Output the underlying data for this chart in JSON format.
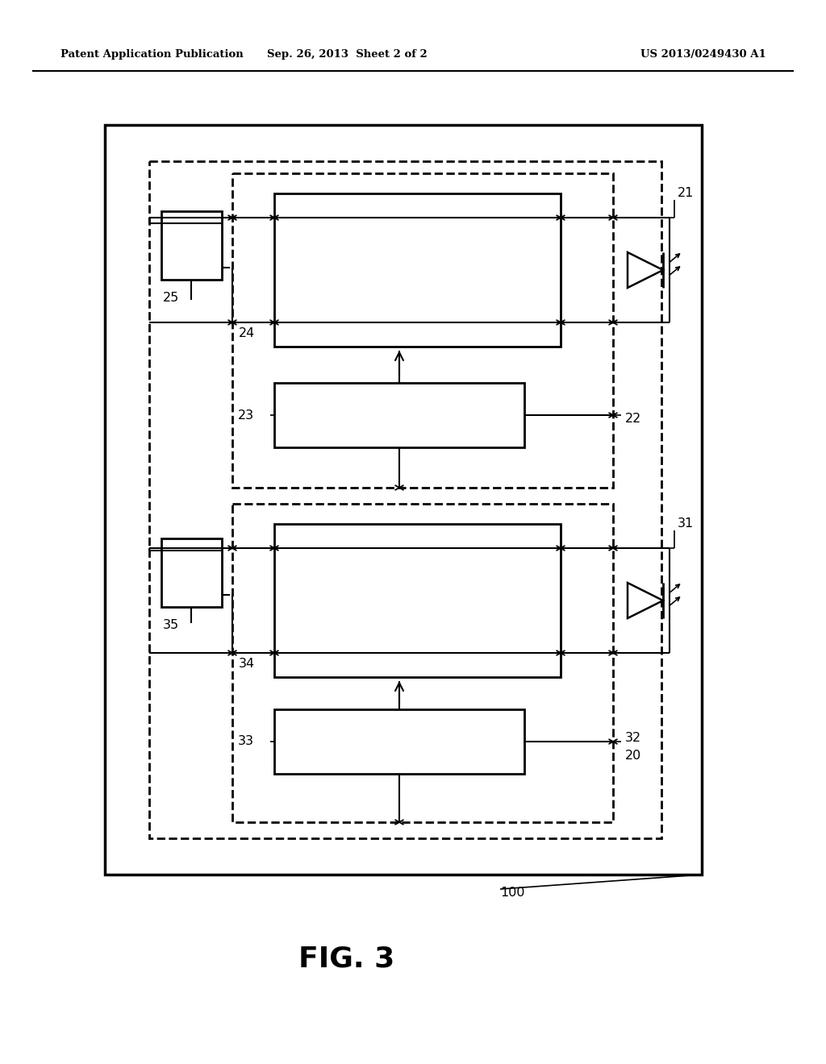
{
  "bg_color": "#ffffff",
  "line_color": "#000000",
  "header_left": "Patent Application Publication",
  "header_mid": "Sep. 26, 2013  Sheet 2 of 2",
  "header_right": "US 2013/0249430 A1",
  "fig_label": "FIG. 3"
}
